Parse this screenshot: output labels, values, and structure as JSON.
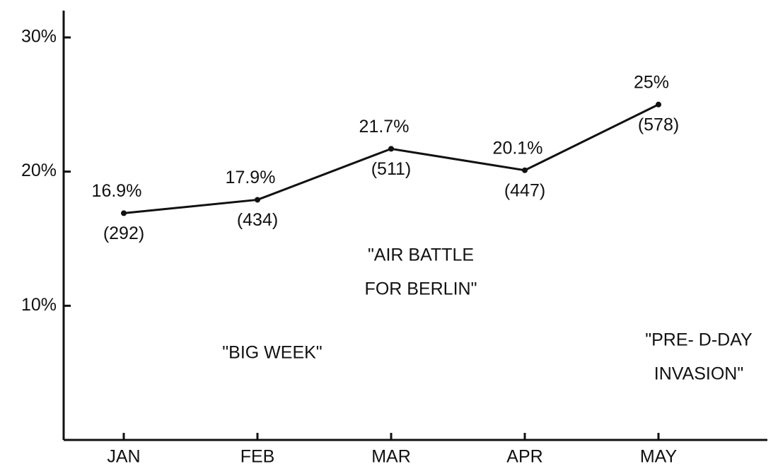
{
  "chart_data": {
    "type": "line",
    "categories": [
      "JAN",
      "FEB",
      "MAR",
      "APR",
      "MAY"
    ],
    "values": [
      16.9,
      17.9,
      21.7,
      20.1,
      25
    ],
    "value_labels": [
      "16.9%",
      "17.9%",
      "21.7%",
      "20.1%",
      "25%"
    ],
    "count_labels": [
      "(292)",
      "(434)",
      "(511)",
      "(447)",
      "(578)"
    ],
    "color": "#111111",
    "ylim": [
      0,
      32
    ],
    "yticks": [
      {
        "value": 10,
        "label": "10%"
      },
      {
        "value": 20,
        "label": "20%"
      },
      {
        "value": 30,
        "label": "30%"
      }
    ],
    "annotations": [
      [
        "\"BIG WEEK\""
      ],
      [
        "\"AIR BATTLE",
        "FOR BERLIN\""
      ],
      [
        "\"PRE- D-DAY",
        "INVASION\""
      ]
    ]
  }
}
